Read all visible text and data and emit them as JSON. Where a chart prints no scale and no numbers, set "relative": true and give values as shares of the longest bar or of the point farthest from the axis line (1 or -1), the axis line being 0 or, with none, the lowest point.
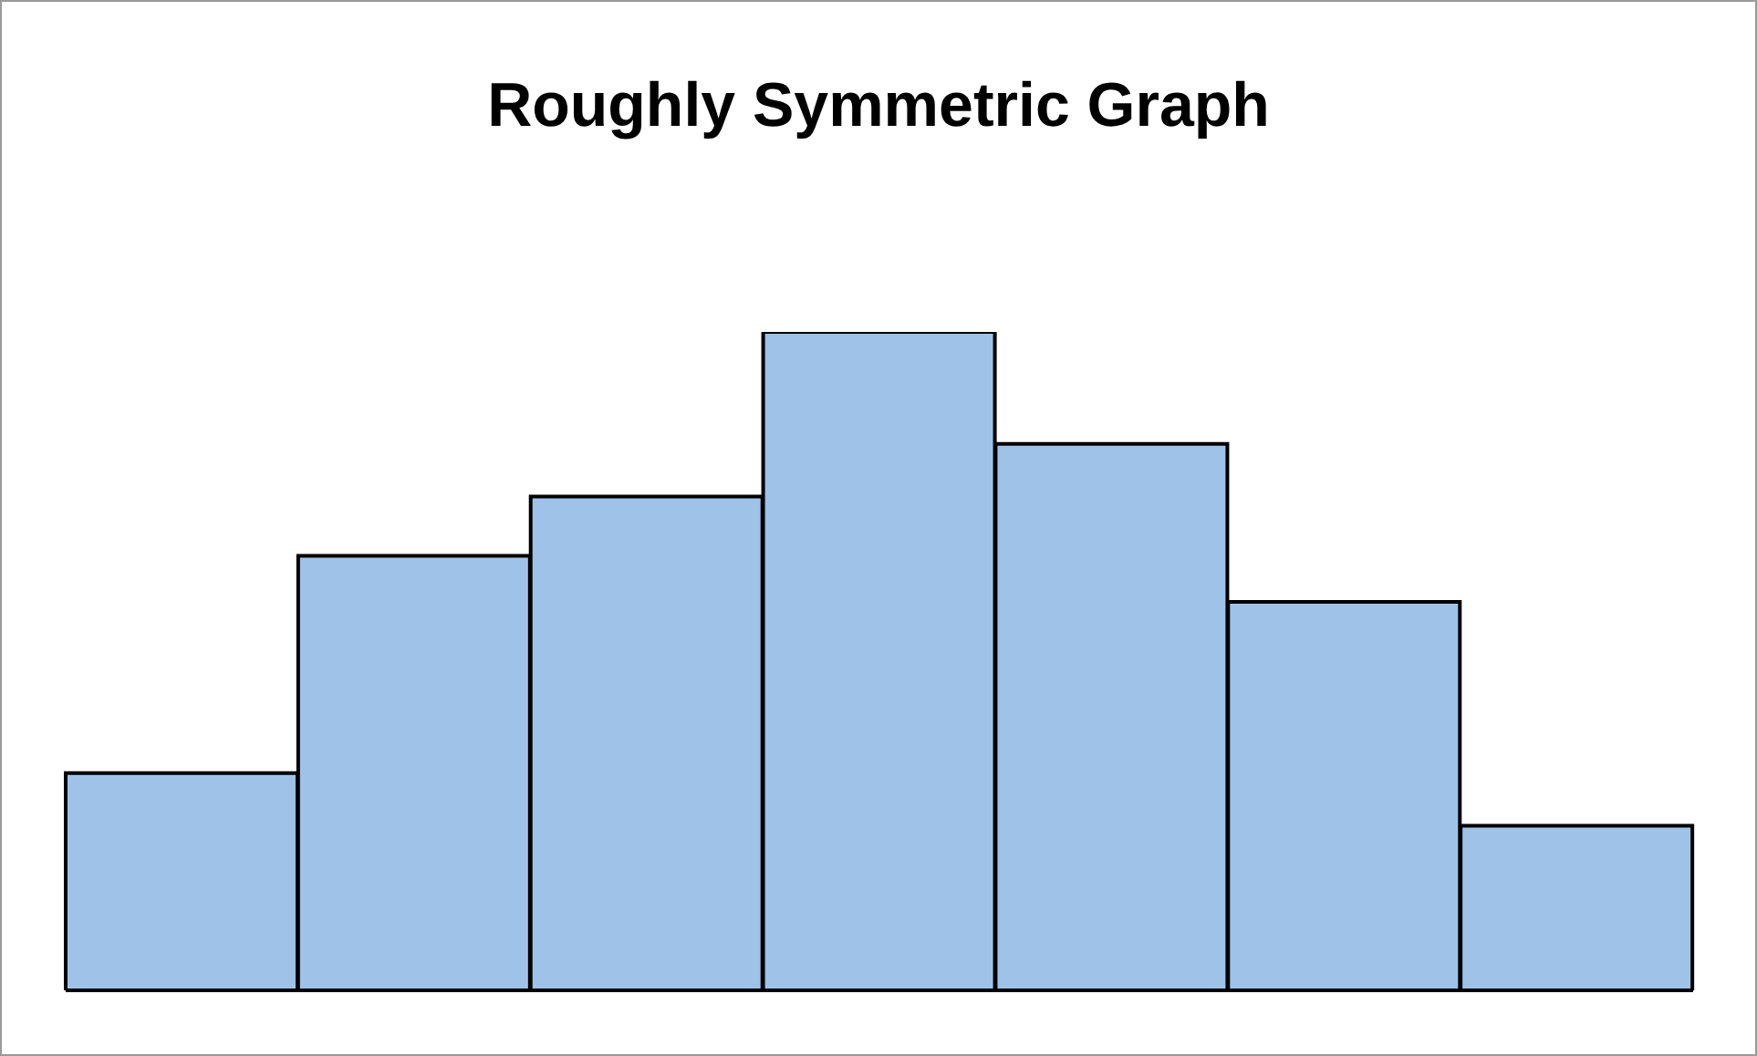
{
  "chart_data": {
    "type": "bar",
    "title": "Roughly Symmetric Graph",
    "relative": true,
    "categories": [
      null,
      null,
      null,
      null,
      null,
      null,
      null
    ],
    "values": [
      0.33,
      0.66,
      0.75,
      1,
      0.83,
      0.59,
      0.25
    ],
    "color": "#9fc2e9"
  }
}
